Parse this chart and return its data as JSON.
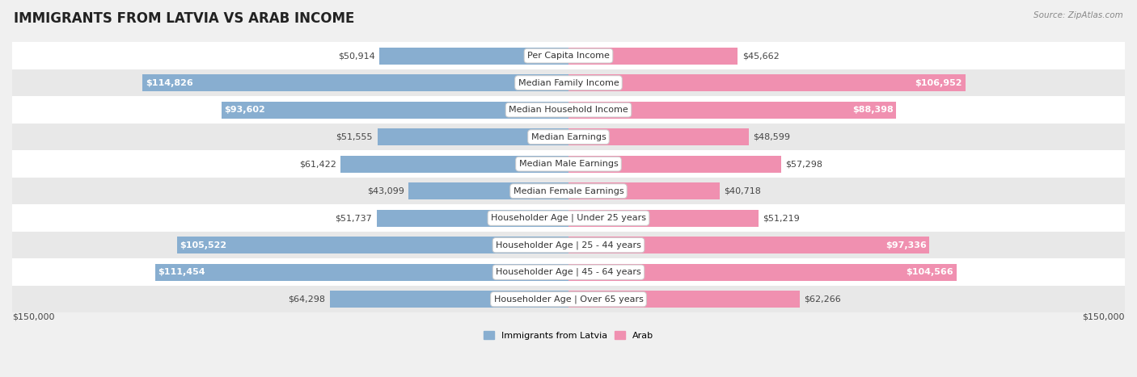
{
  "title": "IMMIGRANTS FROM LATVIA VS ARAB INCOME",
  "source": "Source: ZipAtlas.com",
  "categories": [
    "Per Capita Income",
    "Median Family Income",
    "Median Household Income",
    "Median Earnings",
    "Median Male Earnings",
    "Median Female Earnings",
    "Householder Age | Under 25 years",
    "Householder Age | 25 - 44 years",
    "Householder Age | 45 - 64 years",
    "Householder Age | Over 65 years"
  ],
  "latvia_values": [
    50914,
    114826,
    93602,
    51555,
    61422,
    43099,
    51737,
    105522,
    111454,
    64298
  ],
  "arab_values": [
    45662,
    106952,
    88398,
    48599,
    57298,
    40718,
    51219,
    97336,
    104566,
    62266
  ],
  "max_value": 150000,
  "latvia_color": "#88aed0",
  "arab_color": "#f090b0",
  "white_text_threshold": 80000,
  "bar_height": 0.62,
  "background_color": "#f0f0f0",
  "row_bg_even": "#ffffff",
  "row_bg_odd": "#e8e8e8",
  "legend_labels": [
    "Immigrants from Latvia",
    "Arab"
  ],
  "legend_colors": [
    "#88aed0",
    "#f090b0"
  ],
  "title_fontsize": 12,
  "bar_label_fontsize": 8,
  "axis_label_fontsize": 8,
  "category_fontsize": 8
}
